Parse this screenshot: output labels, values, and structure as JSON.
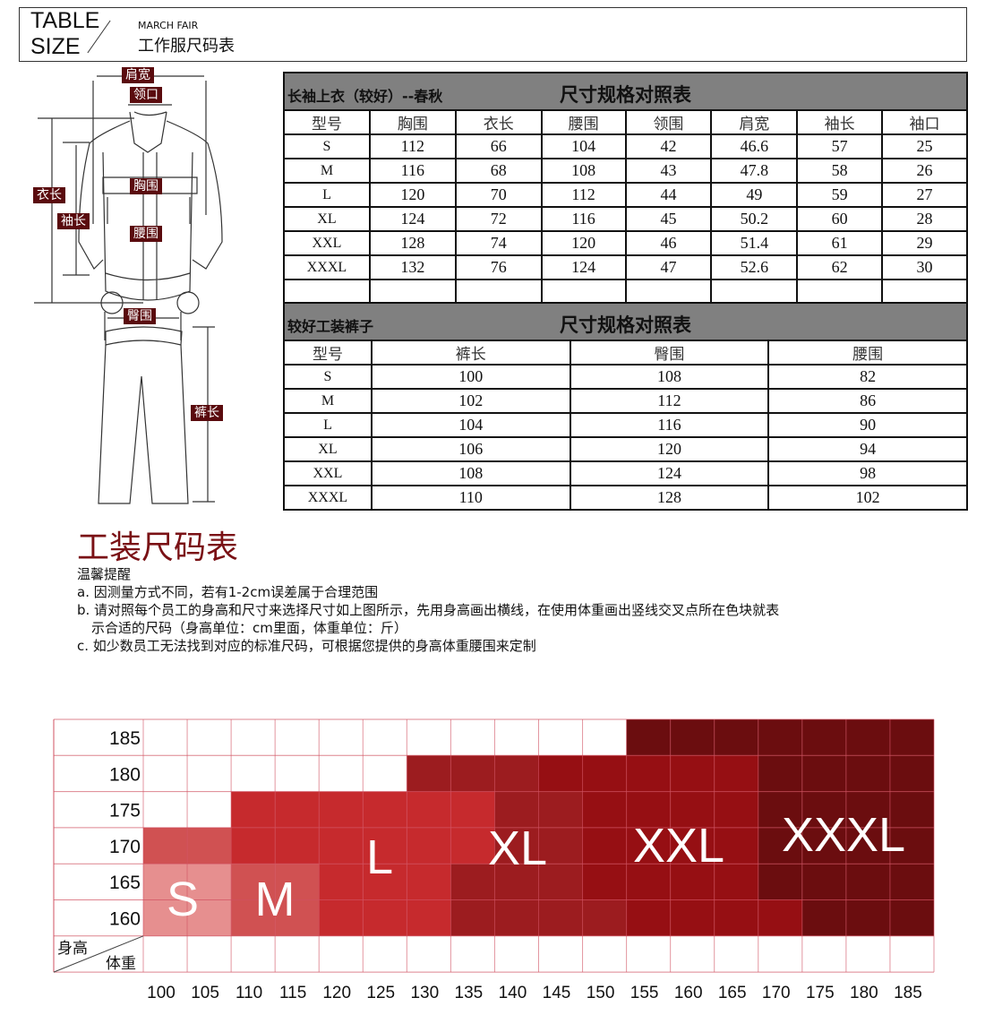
{
  "header": {
    "title_en_1": "TABLE",
    "title_en_2": "SIZE",
    "subtitle": "MARCH FAIR",
    "title_cn": "工作服尺码表"
  },
  "diagram": {
    "labels": {
      "shoulder": "肩宽",
      "collar": "领口",
      "length": "衣长",
      "sleeve": "袖长",
      "chest": "胸围",
      "waist": "腰围",
      "hip": "臀围",
      "pants_length": "裤长"
    }
  },
  "jacket_table": {
    "left_title": "长袖上衣（较好）--春秋",
    "title": "尺寸规格对照表",
    "headers": [
      "型号",
      "胸围",
      "衣长",
      "腰围",
      "领围",
      "肩宽",
      "袖长",
      "袖口"
    ],
    "rows": [
      [
        "S",
        "112",
        "66",
        "104",
        "42",
        "46.6",
        "57",
        "25"
      ],
      [
        "M",
        "116",
        "68",
        "108",
        "43",
        "47.8",
        "58",
        "26"
      ],
      [
        "L",
        "120",
        "70",
        "112",
        "44",
        "49",
        "59",
        "27"
      ],
      [
        "XL",
        "124",
        "72",
        "116",
        "45",
        "50.2",
        "60",
        "28"
      ],
      [
        "XXL",
        "128",
        "74",
        "120",
        "46",
        "51.4",
        "61",
        "29"
      ],
      [
        "XXXL",
        "132",
        "76",
        "124",
        "47",
        "52.6",
        "62",
        "30"
      ],
      [
        "",
        "",
        "",
        "",
        "",
        "",
        "",
        ""
      ]
    ]
  },
  "pants_table": {
    "left_title": "较好工装裤子",
    "title": "尺寸规格对照表",
    "headers": [
      "型号",
      "裤长",
      "臀围",
      "腰围"
    ],
    "rows": [
      [
        "S",
        "100",
        "108",
        "82"
      ],
      [
        "M",
        "102",
        "112",
        "86"
      ],
      [
        "L",
        "104",
        "116",
        "90"
      ],
      [
        "XL",
        "106",
        "120",
        "94"
      ],
      [
        "XXL",
        "108",
        "124",
        "98"
      ],
      [
        "XXXL",
        "110",
        "128",
        "102"
      ]
    ]
  },
  "notes": {
    "heading": "工装尺码表",
    "title": "温馨提醒",
    "a": "a. 因测量方式不同，若有1-2cm误差属于合理范围",
    "b1": "b. 请对照每个员工的身高和尺寸来选择尺寸如上图所示，先用身高画出横线，在使用体重画出竖线交叉点所在色块就表",
    "b2": "示合适的尺码（身高单位：cm里面，体重单位：斤）",
    "c": "c. 如少数员工无法找到对应的标准尺码，可根据您提供的身高体重腰围来定制"
  },
  "chart_data": {
    "type": "heatmap",
    "ylabel": "身高",
    "xlabel": "体重",
    "heights": [
      "185",
      "180",
      "175",
      "170",
      "165",
      "160"
    ],
    "weights": [
      "100",
      "105",
      "110",
      "115",
      "120",
      "125",
      "130",
      "135",
      "140",
      "145",
      "150",
      "155",
      "160",
      "165",
      "170",
      "175",
      "180",
      "185"
    ],
    "colors": {
      "S": "#e68f8f",
      "M": "#d05152",
      "L": "#c62a2d",
      "XL": "#9c1c1f",
      "XXL": "#960f13",
      "XXXL": "#6b0d0f"
    },
    "size_labels": [
      "S",
      "M",
      "L",
      "XL",
      "XXL",
      "XXXL"
    ],
    "cells": [
      [
        "",
        "",
        "",
        "",
        "",
        "",
        "",
        "",
        "",
        "",
        "",
        "XXXL",
        "XXXL",
        "XXXL",
        "XXXL",
        "XXXL",
        "XXXL",
        "XXXL"
      ],
      [
        "",
        "",
        "",
        "",
        "",
        "",
        "XL",
        "XL",
        "XL",
        "XXL",
        "XXL",
        "XXL",
        "XXL",
        "XXL",
        "XXXL",
        "XXXL",
        "XXXL",
        "XXXL"
      ],
      [
        "",
        "",
        "L",
        "L",
        "L",
        "L",
        "L",
        "L",
        "XL",
        "XL",
        "XXL",
        "XXL",
        "XXL",
        "XXL",
        "XXXL",
        "XXXL",
        "XXXL",
        "XXXL"
      ],
      [
        "M",
        "M",
        "L",
        "L",
        "L",
        "L",
        "L",
        "L",
        "XL",
        "XL",
        "XXL",
        "XXL",
        "XXL",
        "XXL",
        "XXXL",
        "XXXL",
        "XXXL",
        "XXXL"
      ],
      [
        "S",
        "S",
        "M",
        "M",
        "L",
        "L",
        "L",
        "XL",
        "XL",
        "XL",
        "XXL",
        "XXL",
        "XXL",
        "XXL",
        "XXXL",
        "XXXL",
        "XXXL",
        "XXXL"
      ],
      [
        "S",
        "S",
        "M",
        "M",
        "L",
        "L",
        "L",
        "XL",
        "XL",
        "XL",
        "XL",
        "XXL",
        "XXL",
        "XXL",
        "XXL",
        "XXXL",
        "XXXL",
        "XXXL"
      ]
    ]
  }
}
